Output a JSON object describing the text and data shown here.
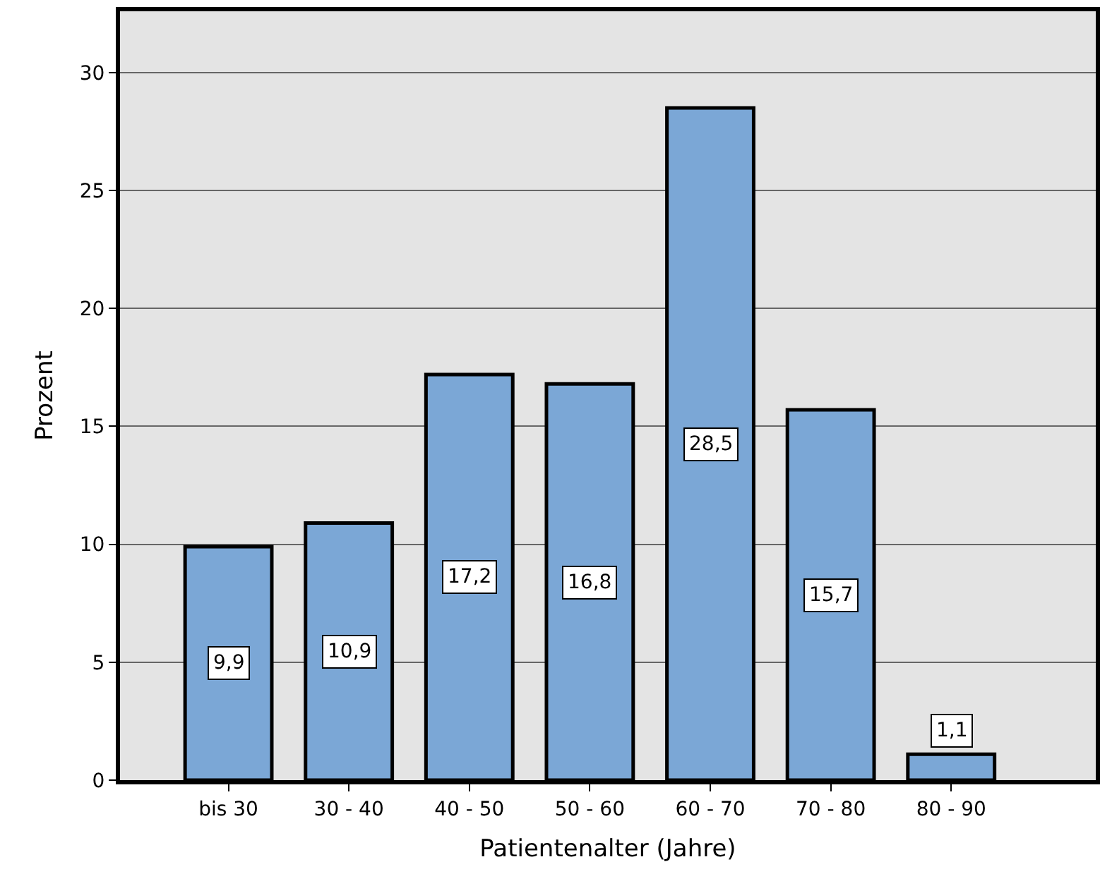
{
  "chart_data": {
    "type": "bar",
    "xlabel": "Patientenalter (Jahre)",
    "ylabel": "Prozent",
    "categories": [
      "bis 30",
      "30 - 40",
      "40 - 50",
      "50 - 60",
      "60 - 70",
      "70 - 80",
      "80 - 90"
    ],
    "values": [
      9.9,
      10.9,
      17.2,
      16.8,
      28.5,
      15.7,
      1.1
    ],
    "value_labels": [
      "9,9",
      "10,9",
      "17,2",
      "16,8",
      "28,5",
      "15,7",
      "1,1"
    ],
    "color": "#7ba7d6",
    "ylim": [
      0,
      32.6
    ],
    "yticks": [
      0,
      5,
      10,
      15,
      20,
      25,
      30
    ],
    "grid": "y",
    "legend": false
  }
}
